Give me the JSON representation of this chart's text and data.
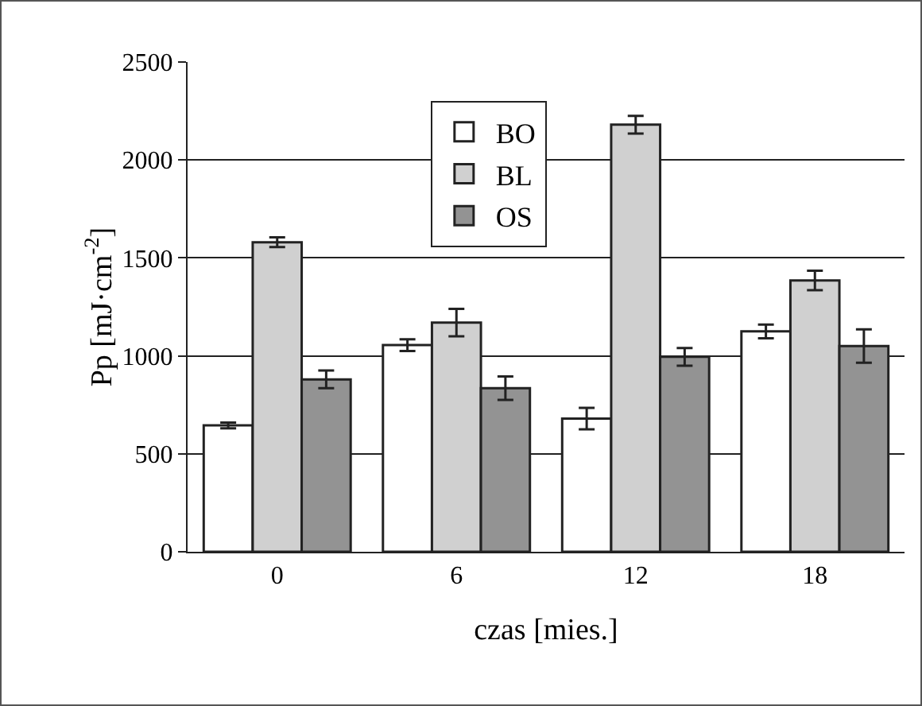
{
  "chart_data": {
    "type": "bar",
    "xlabel": "czas [mies.]",
    "ylabel": "Pp [mJ·cm$^{-2}$]",
    "categories": [
      "0",
      "6",
      "12",
      "18"
    ],
    "series": [
      {
        "name": "BO",
        "color": "#ffffff",
        "values": [
          645,
          1055,
          680,
          1125
        ],
        "errors": [
          15,
          30,
          55,
          35
        ]
      },
      {
        "name": "BL",
        "color": "#d0d0d0",
        "values": [
          1580,
          1170,
          2180,
          1385
        ],
        "errors": [
          25,
          70,
          45,
          50
        ]
      },
      {
        "name": "OS",
        "color": "#939393",
        "values": [
          880,
          835,
          995,
          1050
        ],
        "errors": [
          45,
          60,
          45,
          85
        ]
      }
    ],
    "ylim": [
      0,
      2500
    ],
    "yticks": [
      0,
      500,
      1000,
      1500,
      2000,
      2500
    ],
    "grid": "y",
    "legend": "top"
  }
}
